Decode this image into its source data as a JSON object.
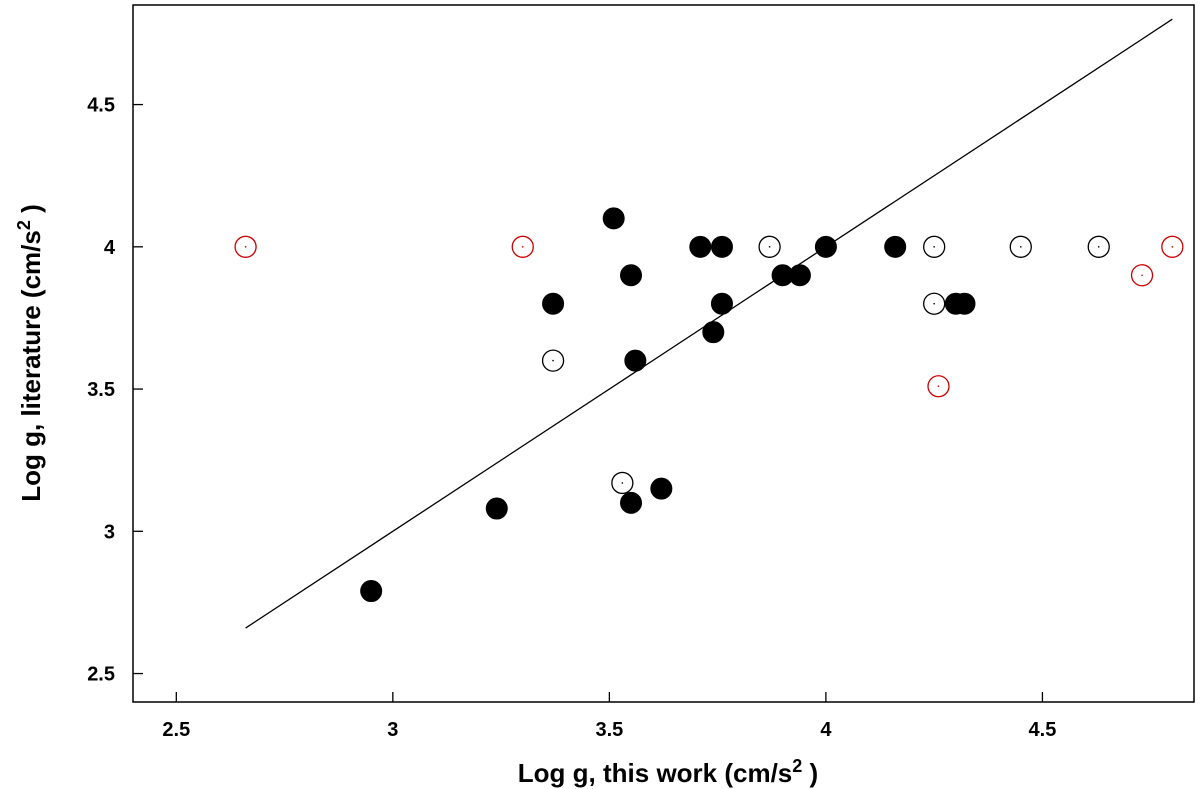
{
  "chart_data": {
    "type": "scatter",
    "xlabel": "Log g, this work (cm/s",
    "xlabel_sup": "2",
    "xlabel_end": " )",
    "ylabel": "Log g, literature (cm/s",
    "ylabel_sup": "2",
    "ylabel_end": " )",
    "xlim": [
      2.4,
      4.85
    ],
    "ylim": [
      2.4,
      4.85
    ],
    "x_ticks": [
      "2.5",
      "3",
      "3.5",
      "4",
      "4.5"
    ],
    "y_ticks": [
      "2.5",
      "3",
      "3.5",
      "4",
      "4.5"
    ],
    "grid": false,
    "line": {
      "x": [
        2.66,
        4.8
      ],
      "y": [
        2.66,
        4.8
      ]
    },
    "series": [
      {
        "marker": "filled-circle",
        "color": "#000000",
        "points": [
          [
            2.95,
            2.79
          ],
          [
            3.24,
            3.08
          ],
          [
            3.37,
            3.8
          ],
          [
            3.51,
            4.1
          ],
          [
            3.55,
            3.9
          ],
          [
            3.55,
            3.1
          ],
          [
            3.56,
            3.6
          ],
          [
            3.62,
            3.15
          ],
          [
            3.71,
            4.0
          ],
          [
            3.74,
            3.7
          ],
          [
            3.76,
            4.0
          ],
          [
            3.76,
            3.8
          ],
          [
            3.9,
            3.9
          ],
          [
            3.94,
            3.9
          ],
          [
            4.0,
            4.0
          ],
          [
            4.16,
            4.0
          ],
          [
            4.3,
            3.8
          ],
          [
            4.32,
            3.8
          ]
        ]
      },
      {
        "marker": "open-circle",
        "color": "#000000",
        "points": [
          [
            3.37,
            3.6
          ],
          [
            3.53,
            3.17
          ],
          [
            3.87,
            4.0
          ],
          [
            4.25,
            4.0
          ],
          [
            4.25,
            3.8
          ],
          [
            4.45,
            4.0
          ],
          [
            4.63,
            4.0
          ]
        ]
      },
      {
        "marker": "open-circle",
        "color": "#cc0000",
        "points": [
          [
            2.66,
            4.0
          ],
          [
            3.3,
            4.0
          ],
          [
            4.26,
            3.51
          ],
          [
            4.73,
            3.9
          ],
          [
            4.8,
            4.0
          ]
        ]
      }
    ]
  }
}
